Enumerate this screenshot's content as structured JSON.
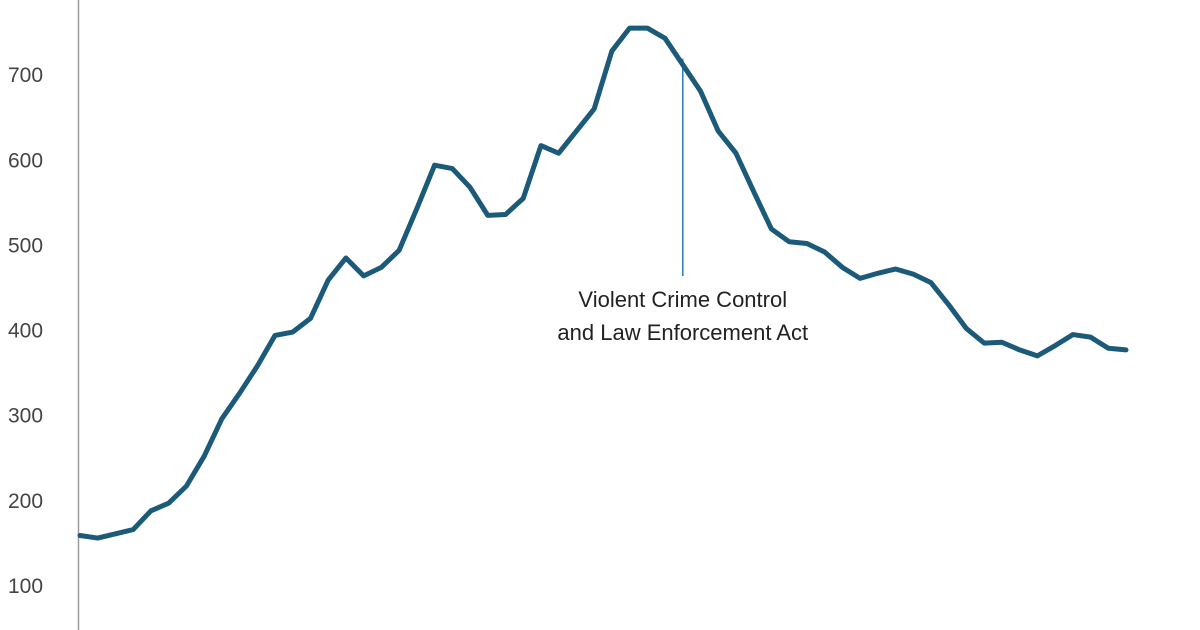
{
  "chart_data": {
    "type": "line",
    "values": [
      161,
      158,
      163,
      168,
      190,
      199,
      219,
      254,
      298,
      328,
      360,
      396,
      400,
      416,
      461,
      487,
      466,
      476,
      496,
      545,
      596,
      592,
      570,
      537,
      538,
      557,
      619,
      610,
      636,
      662,
      730,
      757,
      757,
      745,
      714,
      683,
      636,
      610,
      565,
      521,
      506,
      504,
      494,
      476,
      463,
      469,
      474,
      468,
      458,
      432,
      404,
      387,
      388,
      379,
      372,
      384,
      397,
      394,
      381,
      379
    ],
    "color": "#1b5a78",
    "ylim": [
      50,
      790
    ],
    "yticks": [
      100,
      200,
      300,
      400,
      500,
      600,
      700
    ],
    "annotation": [
      "Violent Crime Control",
      "and Law Enforcement Act"
    ]
  }
}
